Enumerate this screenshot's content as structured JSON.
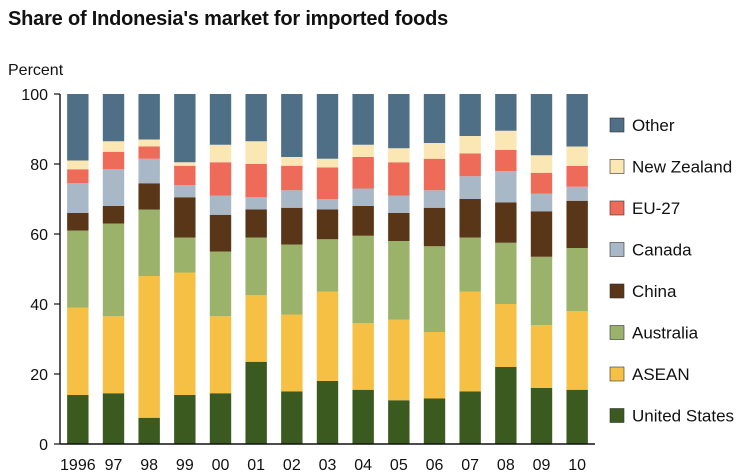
{
  "chart_data": {
    "type": "bar",
    "stacked": true,
    "title": "Share of Indonesia's market for imported foods",
    "ylabel": "Percent",
    "xlabel": "",
    "ylim": [
      0,
      100
    ],
    "yticks": [
      0,
      20,
      40,
      60,
      80,
      100
    ],
    "legend_position": "right",
    "categories": [
      "1996",
      "97",
      "98",
      "99",
      "00",
      "01",
      "02",
      "03",
      "04",
      "05",
      "06",
      "07",
      "08",
      "09",
      "10"
    ],
    "series": [
      {
        "name": "United States",
        "color": "#3b5a1f",
        "values": [
          14,
          14.5,
          7.5,
          14,
          14.5,
          23.5,
          15,
          18,
          15.5,
          12.5,
          13,
          15,
          22,
          16,
          15.5
        ]
      },
      {
        "name": "ASEAN",
        "color": "#f5c044",
        "values": [
          25,
          22,
          40.5,
          35,
          22,
          19,
          22,
          25.5,
          19,
          23,
          19,
          28.5,
          18,
          18,
          22.5
        ]
      },
      {
        "name": "Australia",
        "color": "#9bb26b",
        "values": [
          22,
          26.5,
          19,
          10,
          18.5,
          16.5,
          20,
          15,
          25,
          22.5,
          24.5,
          15.5,
          17.5,
          19.5,
          18
        ]
      },
      {
        "name": "China",
        "color": "#5a3618",
        "values": [
          5,
          5,
          7.5,
          11.5,
          10.5,
          8,
          10.5,
          8.5,
          8.5,
          8,
          11,
          11,
          11.5,
          13,
          13.5
        ]
      },
      {
        "name": "Canada",
        "color": "#a8b8c6",
        "values": [
          8.5,
          10.5,
          7,
          3.5,
          5.5,
          3.5,
          5,
          3,
          5,
          5,
          5,
          6.5,
          9,
          5,
          4
        ]
      },
      {
        "name": "EU-27",
        "color": "#ee6b5a",
        "values": [
          4,
          5,
          3.5,
          5.5,
          9.5,
          9.5,
          7,
          9,
          9,
          9.5,
          9,
          6.5,
          6,
          6,
          6
        ]
      },
      {
        "name": "New Zealand",
        "color": "#fbe7b3",
        "values": [
          2.5,
          3,
          2,
          1,
          5,
          6.5,
          2.5,
          2.5,
          3.5,
          4,
          4.5,
          5,
          5.5,
          5,
          5.5
        ]
      },
      {
        "name": "Other",
        "color": "#4f6f86",
        "values": [
          19,
          13.5,
          13,
          19.5,
          14.5,
          13.5,
          18,
          18.5,
          14.5,
          15.5,
          14,
          12,
          10.5,
          17.5,
          15
        ]
      }
    ]
  }
}
